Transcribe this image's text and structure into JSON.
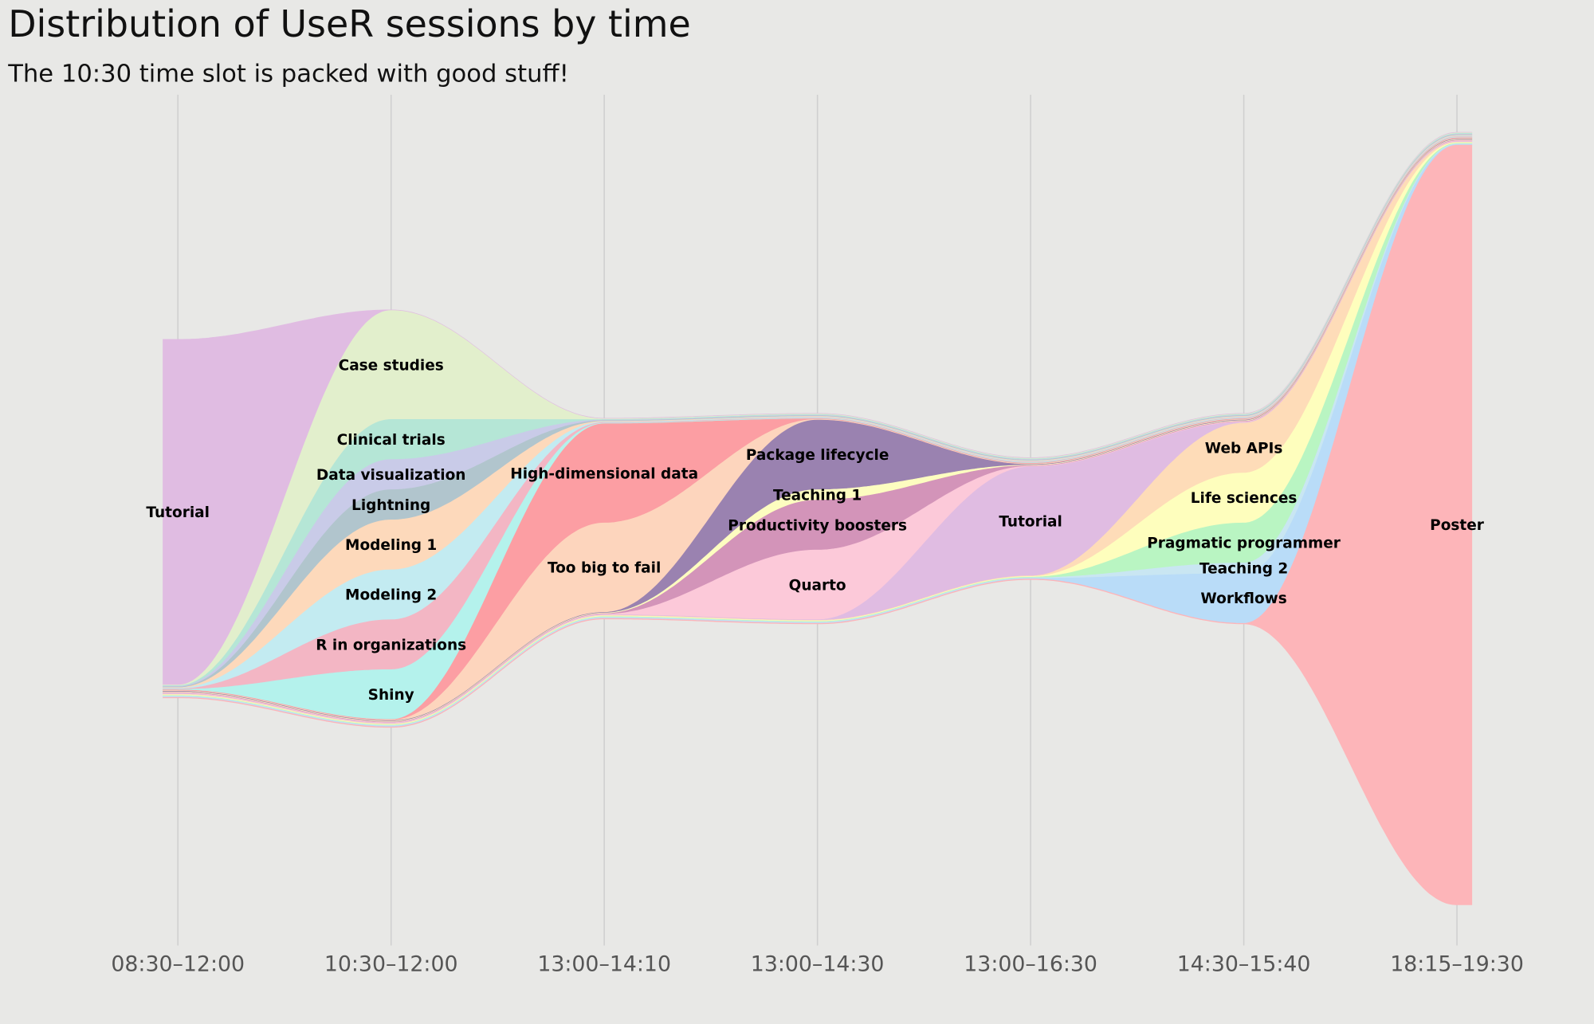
{
  "chart_data": {
    "type": "area",
    "subtype": "streamgraph",
    "title": "Distribution of UseR sessions by time",
    "subtitle": "The 10:30 time slot is packed with good stuff!",
    "xlabel": "",
    "ylabel": "",
    "grid": "vertical",
    "legend": "none (inline labels)",
    "categories": [
      "08:30–12:00",
      "10:30–12:00",
      "13:00–14:10",
      "13:00–14:30",
      "13:00–16:30",
      "14:30–15:40",
      "18:15–19:30"
    ],
    "series": [
      {
        "name": "Tutorial",
        "color": "#e0bce2",
        "values": [
          35,
          0,
          0,
          0,
          0,
          0,
          0
        ]
      },
      {
        "name": "Case studies",
        "color": "#e2efcc",
        "values": [
          0,
          11,
          0,
          0,
          0,
          0,
          0
        ]
      },
      {
        "name": "Clinical trials",
        "color": "#b5e6d6",
        "values": [
          0,
          4,
          0,
          0,
          0,
          0,
          0
        ]
      },
      {
        "name": "Data visualization",
        "color": "#c9cbe8",
        "values": [
          0,
          3,
          0,
          0,
          0,
          0,
          0
        ]
      },
      {
        "name": "Lightning",
        "color": "#b1c5cd",
        "values": [
          0,
          3,
          0,
          0,
          0,
          0,
          0
        ]
      },
      {
        "name": "Modeling 1",
        "color": "#fdd9bb",
        "values": [
          0,
          5,
          0,
          0,
          0,
          0,
          0
        ]
      },
      {
        "name": "Modeling 2",
        "color": "#c3ebf1",
        "values": [
          0,
          5,
          0,
          0,
          0,
          0,
          0
        ]
      },
      {
        "name": "R in organizations",
        "color": "#f3b6c4",
        "values": [
          0,
          5,
          0,
          0,
          0,
          0,
          0
        ]
      },
      {
        "name": "Shiny",
        "color": "#b4f2ec",
        "values": [
          0,
          5,
          0,
          0,
          0,
          0,
          0
        ]
      },
      {
        "name": "High-dimensional data",
        "color": "#fc9ea3",
        "values": [
          0,
          0,
          10,
          0,
          0,
          0,
          0
        ]
      },
      {
        "name": "Too big to fail",
        "color": "#fdd5bd",
        "values": [
          0,
          0,
          9,
          0,
          0,
          0,
          0
        ]
      },
      {
        "name": "Package lifecycle",
        "color": "#9a82b0",
        "values": [
          0,
          0,
          0,
          7,
          0,
          0,
          0
        ]
      },
      {
        "name": "Teaching 1",
        "color": "#fdfdc0",
        "values": [
          0,
          0,
          0,
          1,
          0,
          0,
          0
        ]
      },
      {
        "name": "Productivity boosters",
        "color": "#d394b9",
        "values": [
          0,
          0,
          0,
          5,
          0,
          0,
          0
        ]
      },
      {
        "name": "Quarto",
        "color": "#fcc9d9",
        "values": [
          0,
          0,
          0,
          7,
          0,
          0,
          0
        ]
      },
      {
        "name": "Tutorial",
        "color": "#e0bce2",
        "values": [
          0,
          0,
          0,
          0,
          11,
          0,
          0
        ]
      },
      {
        "name": "Web APIs",
        "color": "#fedcb8",
        "values": [
          0,
          0,
          0,
          0,
          0,
          5,
          0
        ]
      },
      {
        "name": "Life sciences",
        "color": "#fefebd",
        "values": [
          0,
          0,
          0,
          0,
          0,
          5,
          0
        ]
      },
      {
        "name": "Pragmatic programmer",
        "color": "#b9f5c2",
        "values": [
          0,
          0,
          0,
          0,
          0,
          4,
          0
        ]
      },
      {
        "name": "Teaching 2",
        "color": "#c9e6f2",
        "values": [
          0,
          0,
          0,
          0,
          0,
          1,
          0
        ]
      },
      {
        "name": "Workflows",
        "color": "#b9dcf8",
        "values": [
          0,
          0,
          0,
          0,
          0,
          5,
          0
        ]
      },
      {
        "name": "Poster",
        "color": "#fdb5b9",
        "values": [
          0,
          0,
          0,
          0,
          0,
          0,
          77
        ]
      }
    ]
  }
}
